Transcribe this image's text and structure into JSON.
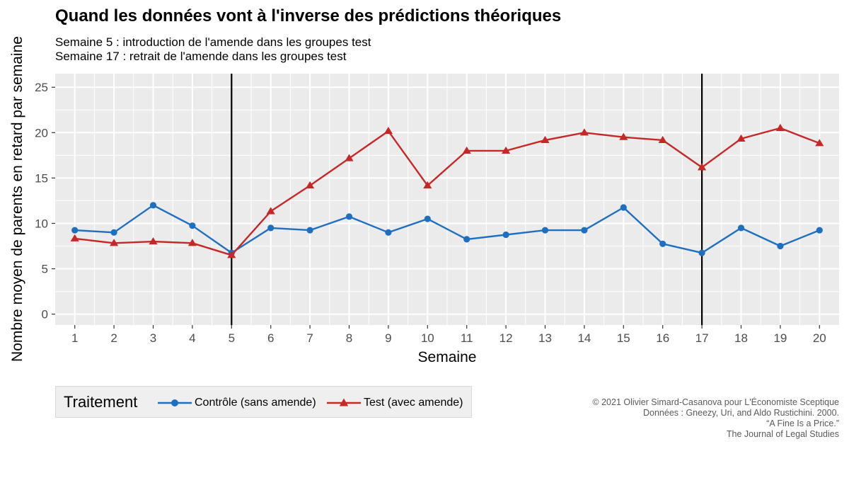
{
  "title": "Quand les données vont à l'inverse des prédictions théoriques",
  "subtitle_lines": [
    "Semaine 5 : introduction de l'amende dans les groupes test",
    "Semaine 17 : retrait de l'amende dans les groupes test"
  ],
  "legend": {
    "title": "Traitement",
    "position": "bottom-left"
  },
  "credits": [
    "© 2021 Olivier Simard-Casanova pour L'Économiste Sceptique",
    "Données : Gneezy, Uri, and Aldo Rustichini. 2000.",
    "“A Fine Is a Price.”",
    "The Journal of Legal Studies"
  ],
  "colors": {
    "panel_background": "#ebebeb",
    "grid": "#ffffff",
    "controle": "#1f6fc0",
    "test": "#c62828",
    "reference_lines": "#000000"
  },
  "chart_data": {
    "type": "line",
    "title": "Quand les données vont à l'inverse des prédictions théoriques",
    "xlabel": "Semaine",
    "ylabel": "Nombre moyen de parents en retard par semaine",
    "x": [
      1,
      2,
      3,
      4,
      5,
      6,
      7,
      8,
      9,
      10,
      11,
      12,
      13,
      14,
      15,
      16,
      17,
      18,
      19,
      20
    ],
    "xticks": [
      "1",
      "2",
      "3",
      "4",
      "5",
      "6",
      "7",
      "8",
      "9",
      "10",
      "11",
      "12",
      "13",
      "14",
      "15",
      "16",
      "17",
      "18",
      "19",
      "20"
    ],
    "yticks": [
      0,
      5,
      10,
      15,
      20,
      25
    ],
    "xlim": [
      0.5,
      20.5
    ],
    "ylim": [
      -1.2,
      26.5
    ],
    "grid": true,
    "vlines": [
      5,
      17
    ],
    "series": [
      {
        "name": "Contrôle (sans amende)",
        "marker": "circle",
        "color": "#1f6fc0",
        "values": [
          9.25,
          9.0,
          12.0,
          9.75,
          6.75,
          9.5,
          9.25,
          10.75,
          9.0,
          10.5,
          8.25,
          8.75,
          9.25,
          9.25,
          11.75,
          7.75,
          6.75,
          9.5,
          7.5,
          9.25
        ]
      },
      {
        "name": "Test (avec amende)",
        "marker": "triangle",
        "color": "#c62828",
        "values": [
          8.33,
          7.83,
          8.0,
          7.83,
          6.5,
          11.33,
          14.17,
          17.17,
          20.17,
          14.17,
          18.0,
          18.0,
          19.17,
          20.0,
          19.5,
          19.17,
          16.17,
          19.33,
          20.5,
          18.83
        ]
      }
    ]
  }
}
